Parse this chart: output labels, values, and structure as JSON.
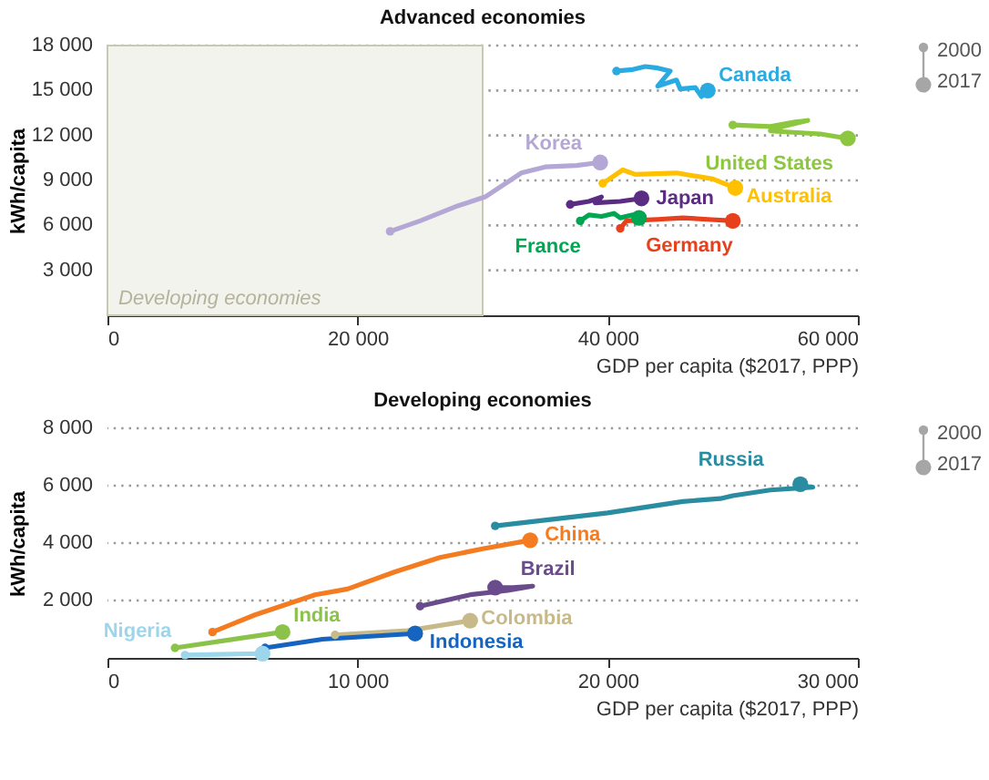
{
  "chart_data": [
    {
      "type": "line",
      "title": "Advanced economies",
      "xlabel": "GDP per capita ($2017, PPP)",
      "ylabel": "kWh/capita",
      "xlim": [
        0,
        60000
      ],
      "xticks": [
        0,
        {
          "value": 20000,
          "label": "20 000"
        },
        {
          "value": 40000,
          "label": "40 000"
        },
        {
          "value": 60000,
          "label": "60 000"
        }
      ],
      "ylim": [
        0,
        18000
      ],
      "yticks": [
        {
          "value": 3000,
          "label": "3 000"
        },
        {
          "value": 6000,
          "label": "6 000"
        },
        {
          "value": 9000,
          "label": "9 000"
        },
        {
          "value": 12000,
          "label": "12 000"
        },
        {
          "value": 15000,
          "label": "15 000"
        },
        {
          "value": 18000,
          "label": "18 000"
        }
      ],
      "grid": "y",
      "annotations": [
        "2000",
        "2017"
      ],
      "bands": [
        {
          "axis": "x",
          "from": 0,
          "to": 30000,
          "label": "Developing economies",
          "color": "#f3f3ee"
        }
      ],
      "series": [
        {
          "name": "Canada",
          "color": "#29abe2",
          "x": [
            40700,
            42000,
            43000,
            44000,
            45000,
            44000,
            45500,
            45800,
            47000,
            47500,
            48000
          ],
          "values": [
            16300,
            16400,
            16600,
            16500,
            16300,
            15300,
            15700,
            15100,
            15200,
            14600,
            15000
          ]
        },
        {
          "name": "United States",
          "color": "#8dc63f",
          "x": [
            50000,
            53000,
            55000,
            56000,
            54000,
            53000,
            57000,
            59200
          ],
          "values": [
            12700,
            12600,
            12900,
            13000,
            12600,
            12300,
            12100,
            11800
          ]
        },
        {
          "name": "Korea",
          "color": "#b4a7d6",
          "x": [
            22600,
            25000,
            28000,
            30200,
            33100,
            35000,
            37500,
            39400
          ],
          "values": [
            5600,
            6300,
            7300,
            7900,
            9500,
            9900,
            10000,
            10200
          ]
        },
        {
          "name": "Australia",
          "color": "#ffc000",
          "x": [
            39600,
            41200,
            42200,
            45500,
            48400,
            50200
          ],
          "values": [
            8800,
            9700,
            9400,
            9500,
            9100,
            8500
          ]
        },
        {
          "name": "Japan",
          "color": "#5b2c83",
          "x": [
            37000,
            38500,
            39500,
            39000,
            41000,
            42700
          ],
          "values": [
            7400,
            7600,
            7900,
            7500,
            7600,
            7800
          ]
        },
        {
          "name": "France",
          "color": "#00a651",
          "x": [
            37800,
            38500,
            39500,
            40500,
            41000,
            42000,
            42500
          ],
          "values": [
            6300,
            6700,
            6600,
            6800,
            6500,
            6700,
            6500
          ]
        },
        {
          "name": "Germany",
          "color": "#e8401c",
          "x": [
            41000,
            41500,
            44000,
            46000,
            48000,
            50000
          ],
          "values": [
            5800,
            6300,
            6400,
            6500,
            6400,
            6300
          ]
        }
      ]
    },
    {
      "type": "line",
      "title": "Developing economies",
      "xlabel": "GDP per capita ($2017, PPP)",
      "ylabel": "kWh/capita",
      "xlim": [
        0,
        30000
      ],
      "xticks": [
        0,
        {
          "value": 10000,
          "label": "10 000"
        },
        {
          "value": 20000,
          "label": "20 000"
        },
        {
          "value": 30000,
          "label": "30 000"
        }
      ],
      "ylim": [
        0,
        8000
      ],
      "yticks": [
        {
          "value": 2000,
          "label": "2 000"
        },
        {
          "value": 4000,
          "label": "4 000"
        },
        {
          "value": 6000,
          "label": "6 000"
        },
        {
          "value": 8000,
          "label": "8 000"
        }
      ],
      "grid": "y",
      "annotations": [
        "2000",
        "2017"
      ],
      "series": [
        {
          "name": "Russia",
          "color": "#2a8ca0",
          "x": [
            15500,
            17000,
            20000,
            23000,
            24500,
            25000,
            26500,
            28200,
            27500,
            27700
          ],
          "values": [
            4600,
            4750,
            5050,
            5450,
            5550,
            5650,
            5850,
            5950,
            6000,
            6050
          ]
        },
        {
          "name": "China",
          "color": "#f47b20",
          "x": [
            4200,
            5900,
            8300,
            9600,
            11500,
            13300,
            15000,
            16900
          ],
          "values": [
            900,
            1500,
            2200,
            2400,
            3000,
            3500,
            3800,
            4100
          ]
        },
        {
          "name": "Brazil",
          "color": "#6a4c8c",
          "x": [
            12500,
            13500,
            14500,
            16000,
            17000,
            16200,
            15500
          ],
          "values": [
            1800,
            2000,
            2200,
            2350,
            2500,
            2450,
            2450
          ]
        },
        {
          "name": "Colombia",
          "color": "#c8b98a",
          "x": [
            9100,
            12000,
            14500
          ],
          "values": [
            800,
            950,
            1300
          ]
        },
        {
          "name": "India",
          "color": "#8bc34a",
          "marker": "circle",
          "x": [
            2700,
            7000
          ],
          "values": [
            350,
            900
          ]
        },
        {
          "name": "Indonesia",
          "color": "#1565c0",
          "x": [
            6300,
            8600,
            12300
          ],
          "values": [
            350,
            650,
            850
          ]
        },
        {
          "name": "Nigeria",
          "color": "#9dd6ea",
          "marker": "circle",
          "x": [
            3100,
            6200
          ],
          "values": [
            100,
            150
          ]
        }
      ]
    }
  ]
}
